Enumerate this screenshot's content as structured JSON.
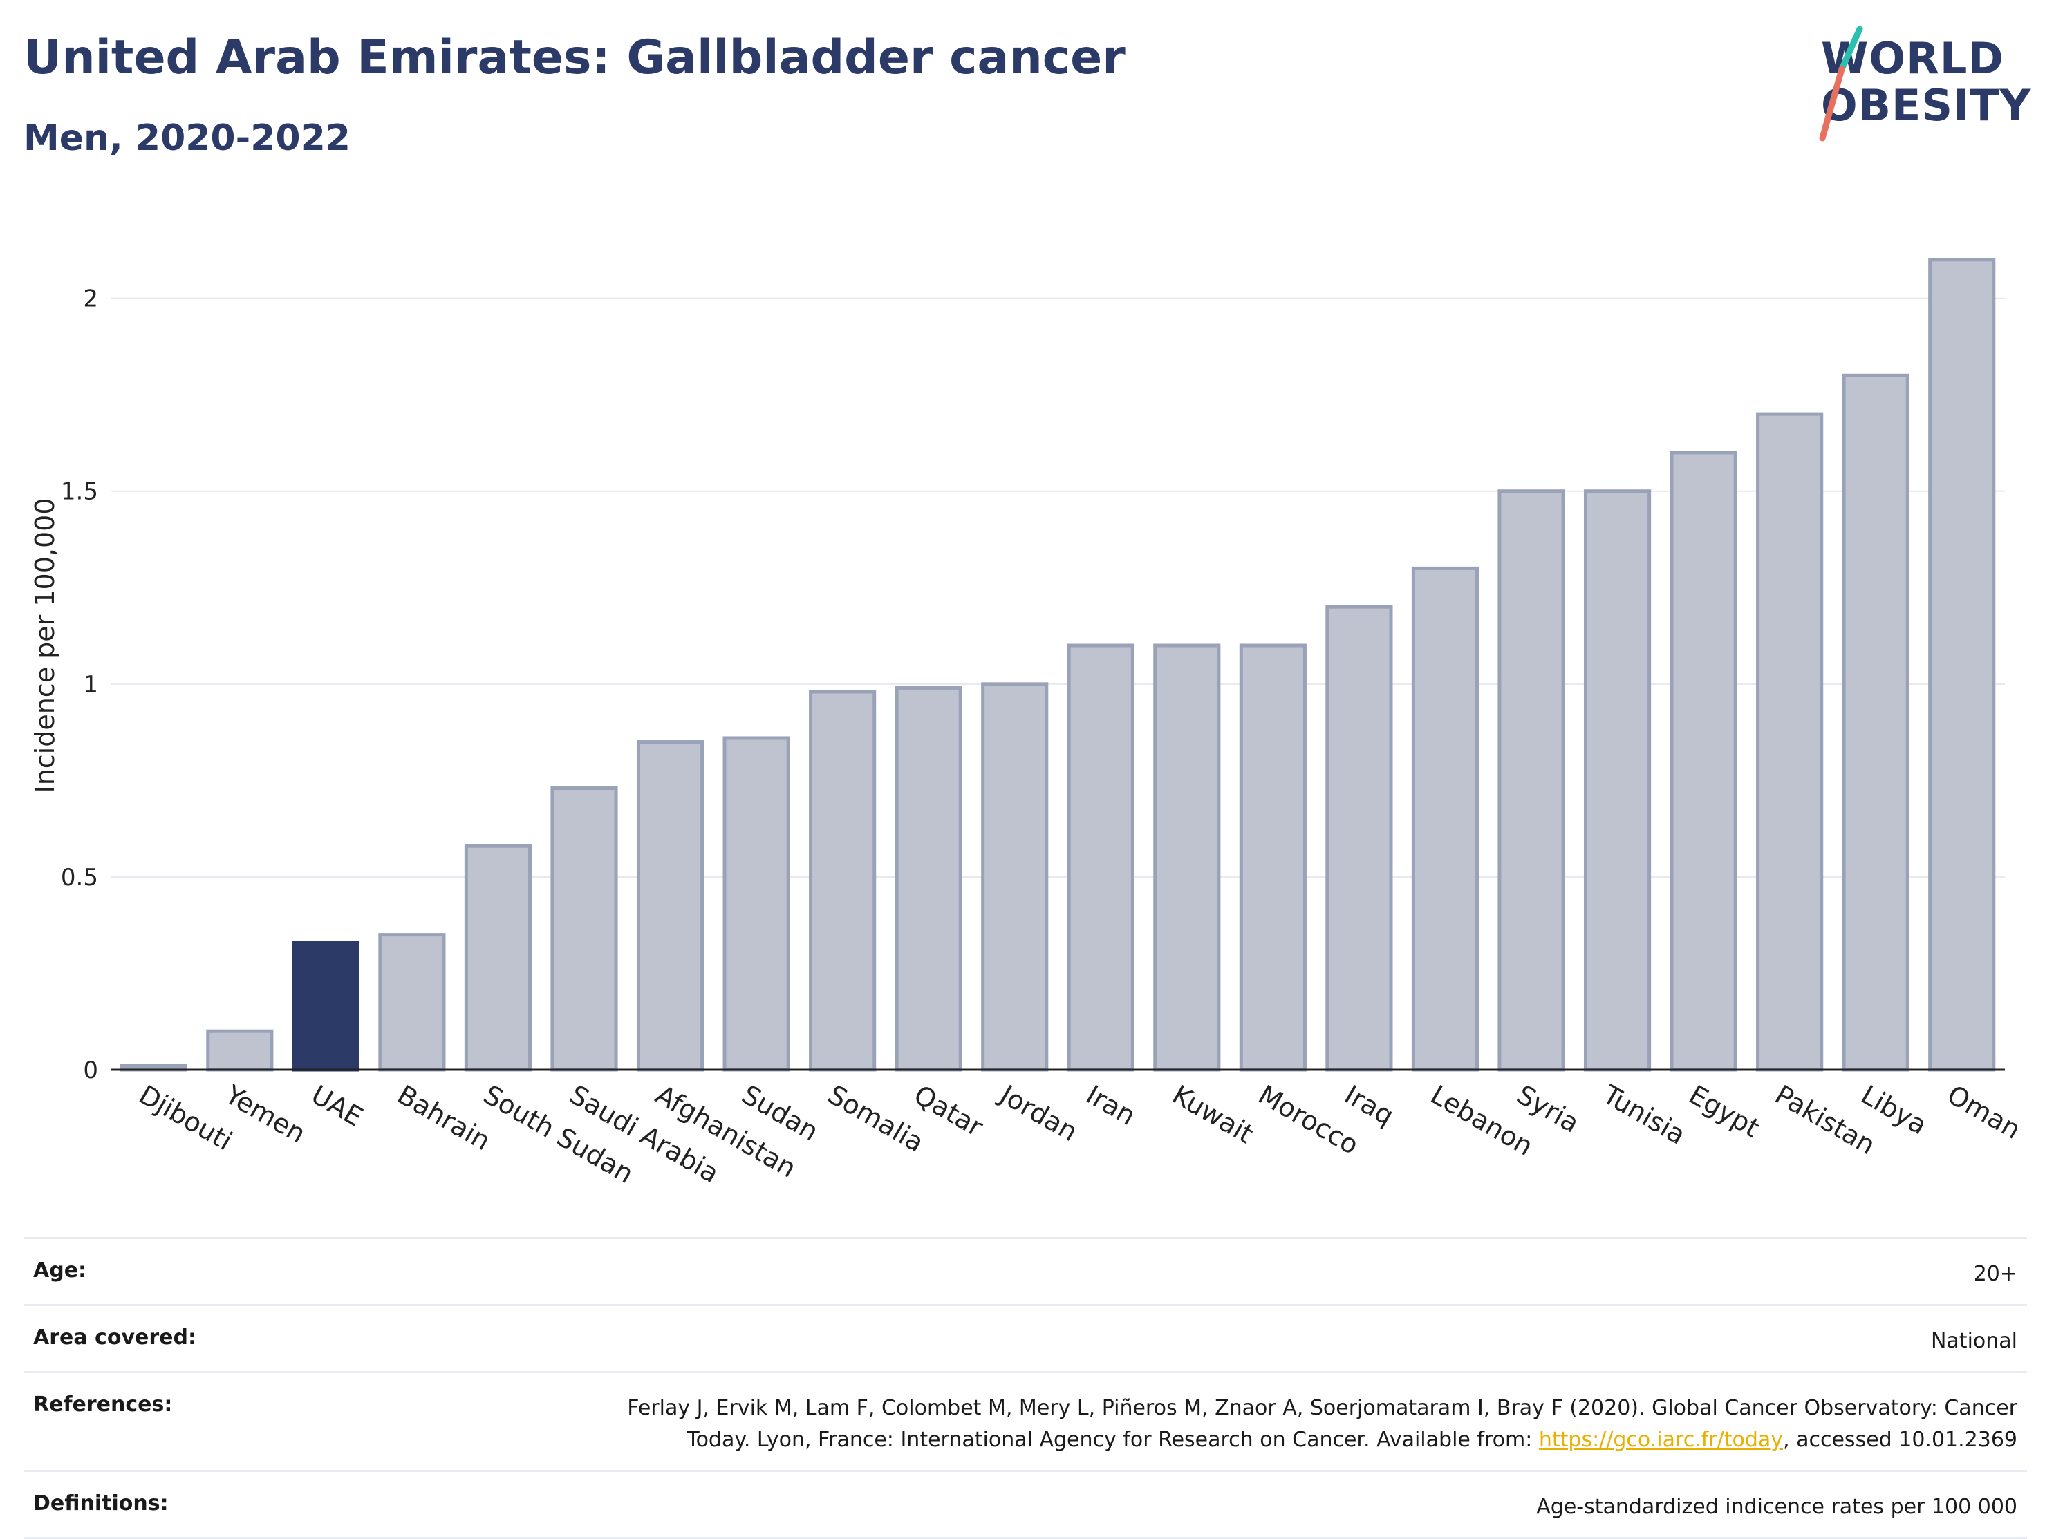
{
  "title": "United Arab Emirates: Gallbladder cancer",
  "subtitle": "Men, 2020-2022",
  "logo": {
    "line1": "WORLD",
    "line2": "OBESITY"
  },
  "colors": {
    "highlight": "#2b3a67",
    "bar": "#bfc3d0",
    "bar_border": "#9aa2b8",
    "title": "#2b3a67",
    "link": "#e8b000",
    "logo_slash_teal": "#2bbfb0",
    "logo_slash_coral": "#e8705e"
  },
  "chart_data": {
    "type": "bar",
    "categories": [
      "Djibouti",
      "Yemen",
      "UAE",
      "Bahrain",
      "South Sudan",
      "Saudi Arabia",
      "Afghanistan",
      "Sudan",
      "Somalia",
      "Qatar",
      "Jordan",
      "Iran",
      "Kuwait",
      "Morocco",
      "Iraq",
      "Lebanon",
      "Syria",
      "Tunisia",
      "Egypt",
      "Pakistan",
      "Libya",
      "Oman"
    ],
    "values": [
      0.01,
      0.1,
      0.33,
      0.35,
      0.58,
      0.73,
      0.85,
      0.86,
      0.98,
      0.99,
      1.0,
      1.1,
      1.1,
      1.1,
      1.2,
      1.3,
      1.5,
      1.5,
      1.6,
      1.7,
      1.8,
      2.1
    ],
    "highlight": "UAE",
    "ylabel": "Incidence per 100,000",
    "xlabel": "",
    "yticks": [
      "0",
      "0.5",
      "1",
      "1.5",
      "2"
    ],
    "ylim": [
      0,
      2.2
    ],
    "grid": true
  },
  "footer": {
    "rows": [
      {
        "label": "Age:",
        "value": "20+"
      },
      {
        "label": "Area covered:",
        "value": "National"
      },
      {
        "label": "References:",
        "value_line1": "Ferlay J, Ervik M, Lam F, Colombet M, Mery L, Piñeros M, Znaor A, Soerjomataram I, Bray F (2020). Global Cancer Observatory: Cancer",
        "value_line2_pre": "Today. Lyon, France: International Agency for Research on Cancer. Available from: ",
        "link": "https://gco.iarc.fr/today",
        "value_line2_post": ", accessed 10.01.2369"
      },
      {
        "label": "Definitions:",
        "value": "Age-standardized indicence rates per 100 000"
      }
    ]
  }
}
